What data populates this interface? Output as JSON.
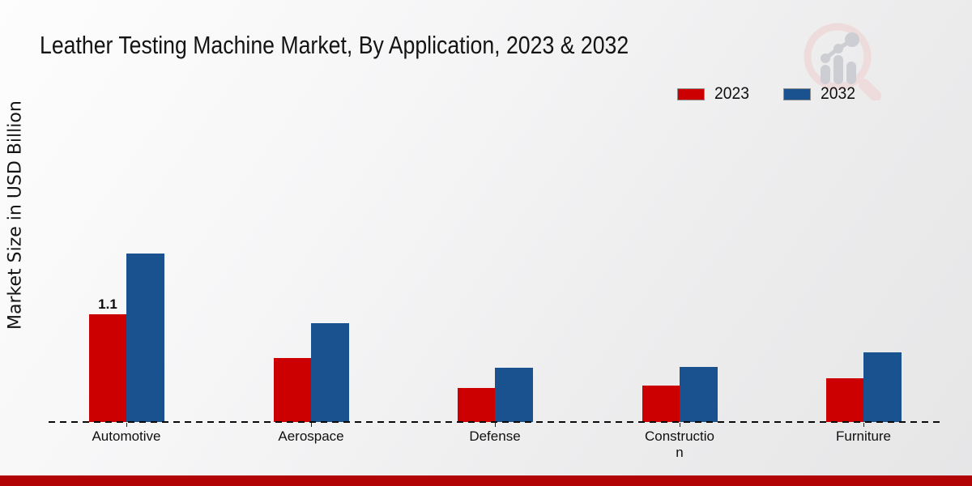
{
  "page": {
    "title": "Leather Testing Machine Market, By Application, 2023 & 2032",
    "y_axis_label": "Market Size in USD Billion",
    "footer_bar_color": "#b20404",
    "background_color": "#ededee"
  },
  "legend": {
    "items": [
      {
        "label": "2023",
        "color": "#cc0000"
      },
      {
        "label": "2032",
        "color": "#1a528f"
      }
    ]
  },
  "logo": {
    "name": "magnifier-bar-chart-watermark",
    "ring_color": "#eedcdc",
    "bars_color": "#ccced3"
  },
  "chart_data": {
    "type": "bar",
    "title": "Leather Testing Machine Market, By Application, 2023 & 2032",
    "xlabel": "",
    "ylabel": "Market Size in USD Billion",
    "categories": [
      "Automotive",
      "Aerospace",
      "Defense",
      "Construction",
      "Furniture"
    ],
    "category_display": [
      [
        "Automotive"
      ],
      [
        "Aerospace"
      ],
      [
        "Defense"
      ],
      [
        "Constructio",
        "n"
      ],
      [
        "Furniture"
      ]
    ],
    "series": [
      {
        "name": "2023",
        "color": "#cc0000",
        "values": [
          1.1,
          0.65,
          0.35,
          0.37,
          0.45
        ]
      },
      {
        "name": "2032",
        "color": "#1a528f",
        "values": [
          1.72,
          1.01,
          0.55,
          0.56,
          0.71
        ]
      }
    ],
    "bar_labels": [
      {
        "series_index": 0,
        "category_index": 0,
        "text": "1.1"
      }
    ],
    "ylim": [
      0,
      3.4
    ],
    "grid": false,
    "y_ticks_visible": false,
    "legend_position": "upper right",
    "baseline_style": "dashed"
  }
}
